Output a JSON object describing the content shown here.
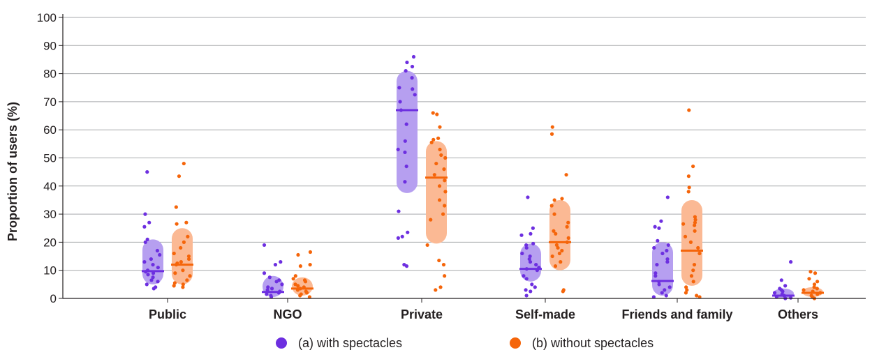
{
  "chart_data": {
    "type": "scatter",
    "ylabel": "Proportion of users (%)",
    "ylim": [
      0,
      100
    ],
    "yticks": [
      "0",
      "10",
      "20",
      "30",
      "40",
      "50",
      "60",
      "70",
      "80",
      "90",
      "100"
    ],
    "grid": true,
    "legend_position": "bottom-center",
    "categories": [
      "Public",
      "NGO",
      "Private",
      "Self-made",
      "Friends and family",
      "Others"
    ],
    "series": [
      {
        "name": "(a) with spectacles",
        "color": "#6d2fe0",
        "band_color": "#b69ff0",
        "medians": [
          9.7,
          2.3,
          67,
          10.5,
          6.2,
          1.0
        ],
        "iqr_low": [
          5.0,
          0.5,
          37.5,
          6.0,
          1.0,
          0.0
        ],
        "iqr_high": [
          21.0,
          8.0,
          81.0,
          19.5,
          20.0,
          3.5
        ],
        "points": [
          [
            45,
            30,
            27,
            25.5,
            21,
            20,
            17,
            15.5,
            14,
            13,
            12,
            11,
            10,
            9.5,
            9,
            8.5,
            7.5,
            6.5,
            6,
            5,
            4,
            3.5
          ],
          [
            19,
            13,
            12,
            9,
            7.5,
            6.5,
            6,
            5,
            4,
            3.5,
            3,
            2.5,
            2,
            1.5,
            1,
            0.5
          ],
          [
            86,
            84,
            82.5,
            81,
            78.5,
            75,
            74.5,
            72.5,
            70,
            67,
            62,
            56,
            53,
            52,
            47,
            41.5,
            31,
            23.5,
            22,
            21.5,
            12,
            11.5
          ],
          [
            36,
            25,
            23,
            22.5,
            19.5,
            19,
            18,
            16,
            15,
            14,
            13,
            12,
            11,
            10.5,
            10,
            8,
            7,
            5,
            4,
            3,
            2.5,
            1
          ],
          [
            36,
            27.5,
            25.5,
            25,
            20.5,
            19,
            18,
            17,
            16,
            14,
            13,
            12,
            9,
            8,
            6,
            5,
            4,
            3,
            2,
            1,
            0.5
          ],
          [
            13,
            6.5,
            4.5,
            3.5,
            3,
            2.5,
            2,
            1.5,
            1,
            0.5,
            0.2,
            0
          ]
        ]
      },
      {
        "name": "(b) without spectacles",
        "color": "#f5650a",
        "band_color": "#fbb994",
        "medians": [
          12,
          3.5,
          43,
          20,
          17,
          2.0
        ],
        "iqr_low": [
          5.0,
          1.0,
          19.5,
          10.0,
          4.5,
          0.8
        ],
        "iqr_high": [
          25.0,
          7.5,
          56.0,
          35.0,
          35.0,
          4.0
        ],
        "points": [
          [
            48,
            43.5,
            32.5,
            27,
            26.5,
            22,
            20,
            18,
            16,
            15,
            14,
            13,
            12.5,
            12,
            10,
            9,
            8,
            6.5,
            5.5,
            5,
            4.5,
            4
          ],
          [
            16.5,
            15.5,
            12,
            11.5,
            8,
            7,
            6.5,
            6,
            5,
            4.5,
            4,
            3.5,
            3,
            2.5,
            2,
            1.5,
            1,
            0.5
          ],
          [
            66,
            65.5,
            61,
            57,
            56.5,
            55.5,
            53,
            51,
            50,
            48,
            46,
            44,
            42,
            40,
            38,
            35,
            33,
            30,
            28,
            19,
            13.5,
            12,
            8,
            4,
            3
          ],
          [
            61,
            58.5,
            44,
            35.5,
            35,
            33,
            30,
            27,
            25.5,
            24,
            23,
            21.5,
            20,
            19,
            18,
            17,
            16,
            15,
            13,
            11.5,
            3,
            2.5
          ],
          [
            67,
            47,
            43.5,
            39.5,
            38,
            29,
            28,
            27,
            26.5,
            26,
            24,
            22,
            20,
            18,
            16,
            12,
            10,
            8,
            6,
            4,
            3,
            2,
            1,
            0.5
          ],
          [
            9.5,
            9,
            7,
            6,
            5,
            4,
            3.5,
            3,
            2.5,
            2,
            1.5,
            1,
            0.5,
            0
          ]
        ]
      }
    ]
  }
}
